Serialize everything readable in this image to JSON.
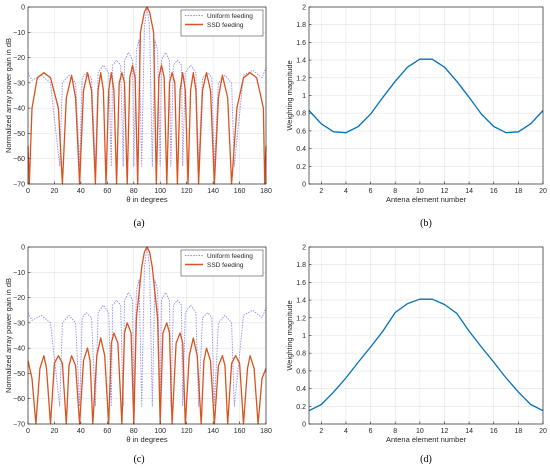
{
  "chart_data": [
    {
      "id": "a",
      "type": "line",
      "panel_label": "(a)",
      "title": "",
      "xlabel": "θ in degrees",
      "ylabel": "Normalized array power gain in dB",
      "xlim": [
        0,
        180
      ],
      "ylim": [
        -70,
        0
      ],
      "xticks": [
        0,
        20,
        40,
        60,
        80,
        100,
        120,
        140,
        160,
        180
      ],
      "yticks": [
        0,
        -10,
        -20,
        -30,
        -40,
        -50,
        -60,
        -70
      ],
      "grid": true,
      "legend_position": "top-right",
      "series": [
        {
          "name": "Uniform feeding",
          "color": "#8c8cf2",
          "style": "dotted",
          "x": [
            0,
            3,
            10,
            17,
            24,
            26,
            31,
            36,
            39,
            41,
            44,
            48,
            51,
            53,
            57,
            61,
            63,
            64,
            67,
            70,
            72,
            73,
            76,
            79,
            80,
            82,
            84,
            86,
            88,
            90,
            92,
            94,
            96,
            98,
            100,
            101,
            104,
            107,
            108,
            110,
            113,
            116,
            117,
            119,
            123,
            127,
            129,
            132,
            136,
            139,
            141,
            144,
            149,
            154,
            156,
            163,
            170,
            177,
            180
          ],
          "y": [
            -26,
            -29,
            -27,
            -30,
            -63,
            -30,
            -27,
            -30,
            -63,
            -28,
            -26,
            -28,
            -63,
            -26,
            -23,
            -26,
            -63,
            -23,
            -21,
            -23,
            -63,
            -21,
            -18,
            -21,
            -63,
            -17,
            -13,
            -63,
            -8,
            0,
            -8,
            -63,
            -13,
            -17,
            -63,
            -21,
            -18,
            -21,
            -63,
            -23,
            -21,
            -23,
            -63,
            -26,
            -23,
            -26,
            -63,
            -28,
            -26,
            -28,
            -63,
            -30,
            -27,
            -30,
            -63,
            -27,
            -25,
            -28,
            -24
          ]
        },
        {
          "name": "SSD feeding",
          "color": "#d9531e",
          "style": "solid",
          "x": [
            0,
            1,
            3,
            7,
            12,
            17,
            23,
            26,
            29,
            33,
            36,
            39,
            42,
            45,
            48,
            51,
            53,
            55,
            57,
            59,
            61,
            63,
            65,
            67,
            69,
            71,
            73,
            75,
            77,
            79,
            81,
            83,
            85,
            88,
            90,
            92,
            95,
            97,
            99,
            101,
            103,
            105,
            107,
            109,
            111,
            113,
            115,
            117,
            119,
            121,
            123,
            125,
            127,
            129,
            132,
            135,
            138,
            141,
            144,
            147,
            151,
            154,
            158,
            163,
            168,
            173,
            178,
            179,
            180
          ],
          "y": [
            -55,
            -70,
            -40,
            -28,
            -26,
            -28,
            -40,
            -70,
            -36,
            -27,
            -36,
            -70,
            -33,
            -26,
            -33,
            -70,
            -33,
            -26,
            -33,
            -70,
            -33,
            -26,
            -33,
            -70,
            -30,
            -26,
            -30,
            -70,
            -28,
            -23,
            -28,
            -70,
            -10,
            -2,
            0,
            -2,
            -10,
            -70,
            -28,
            -23,
            -28,
            -70,
            -30,
            -26,
            -30,
            -70,
            -33,
            -26,
            -33,
            -70,
            -33,
            -26,
            -33,
            -70,
            -33,
            -26,
            -33,
            -70,
            -36,
            -27,
            -36,
            -70,
            -40,
            -28,
            -26,
            -28,
            -40,
            -70,
            -55
          ]
        }
      ]
    },
    {
      "id": "b",
      "type": "line",
      "panel_label": "(b)",
      "title": "",
      "xlabel": "Antena element number",
      "ylabel": "Weighting magnitude",
      "xlim": [
        1,
        20
      ],
      "ylim": [
        0,
        2
      ],
      "xticks": [
        2,
        4,
        6,
        8,
        10,
        12,
        14,
        16,
        18,
        20
      ],
      "yticks": [
        0,
        0.2,
        0.4,
        0.6,
        0.8,
        1,
        1.2,
        1.4,
        1.6,
        1.8,
        2
      ],
      "grid": true,
      "series": [
        {
          "color": "#0072bd",
          "x": [
            1,
            2,
            3,
            4,
            5,
            6,
            7,
            8,
            9,
            10,
            11,
            12,
            13,
            14,
            15,
            16,
            17,
            18,
            19,
            20
          ],
          "y": [
            0.83,
            0.68,
            0.59,
            0.58,
            0.65,
            0.79,
            0.98,
            1.16,
            1.32,
            1.41,
            1.41,
            1.32,
            1.16,
            0.98,
            0.79,
            0.65,
            0.58,
            0.59,
            0.68,
            0.83
          ]
        }
      ]
    },
    {
      "id": "c",
      "type": "line",
      "panel_label": "(c)",
      "title": "",
      "xlabel": "θ in degrees",
      "ylabel": "Normalized array power gain in dB",
      "xlim": [
        0,
        180
      ],
      "ylim": [
        -70,
        0
      ],
      "xticks": [
        0,
        20,
        40,
        60,
        80,
        100,
        120,
        140,
        160,
        180
      ],
      "yticks": [
        0,
        -10,
        -20,
        -30,
        -40,
        -50,
        -60,
        -70
      ],
      "grid": true,
      "legend_position": "top-right",
      "series": [
        {
          "name": "Uniform feeding",
          "color": "#8c8cf2",
          "style": "dotted",
          "x": [
            0,
            3,
            10,
            17,
            24,
            26,
            31,
            36,
            39,
            41,
            44,
            48,
            51,
            53,
            57,
            61,
            63,
            64,
            67,
            70,
            72,
            73,
            76,
            79,
            80,
            82,
            84,
            86,
            88,
            90,
            92,
            94,
            96,
            98,
            100,
            101,
            104,
            107,
            108,
            110,
            113,
            116,
            117,
            119,
            123,
            127,
            129,
            132,
            136,
            139,
            141,
            144,
            149,
            154,
            156,
            163,
            170,
            177,
            180
          ],
          "y": [
            -26,
            -29,
            -27,
            -30,
            -63,
            -30,
            -27,
            -30,
            -63,
            -28,
            -26,
            -28,
            -63,
            -26,
            -23,
            -26,
            -63,
            -23,
            -21,
            -23,
            -63,
            -21,
            -18,
            -21,
            -63,
            -17,
            -13,
            -63,
            -8,
            0,
            -8,
            -63,
            -13,
            -17,
            -63,
            -21,
            -18,
            -21,
            -63,
            -23,
            -21,
            -23,
            -63,
            -26,
            -23,
            -26,
            -63,
            -28,
            -26,
            -28,
            -63,
            -30,
            -27,
            -30,
            -63,
            -27,
            -25,
            -28,
            -24
          ]
        },
        {
          "name": "SSD feeding",
          "color": "#d9531e",
          "style": "solid",
          "x": [
            0,
            3,
            6,
            9,
            12,
            14,
            17,
            20,
            23,
            26,
            29,
            31,
            33,
            36,
            39,
            42,
            45,
            47,
            49,
            52,
            55,
            58,
            61,
            63,
            65,
            68,
            71,
            73,
            75,
            78,
            80,
            82,
            84,
            86,
            88,
            90,
            92,
            94,
            96,
            98,
            100,
            102,
            105,
            107,
            109,
            112,
            115,
            117,
            119,
            122,
            125,
            128,
            131,
            133,
            135,
            138,
            141,
            144,
            147,
            149,
            151,
            154,
            157,
            160,
            163,
            166,
            168,
            171,
            174,
            177,
            180
          ],
          "y": [
            -45,
            -52,
            -70,
            -48,
            -43,
            -48,
            -70,
            -46,
            -43,
            -46,
            -70,
            -47,
            -43,
            -47,
            -70,
            -45,
            -40,
            -45,
            -70,
            -43,
            -36,
            -43,
            -70,
            -38,
            -34,
            -38,
            -70,
            -34,
            -30,
            -34,
            -70,
            -28,
            -18,
            -8,
            -2,
            0,
            -2,
            -8,
            -18,
            -28,
            -70,
            -34,
            -30,
            -34,
            -70,
            -38,
            -34,
            -38,
            -70,
            -43,
            -36,
            -43,
            -70,
            -45,
            -40,
            -45,
            -70,
            -47,
            -43,
            -47,
            -70,
            -46,
            -43,
            -46,
            -70,
            -48,
            -43,
            -48,
            -70,
            -52,
            -48
          ]
        }
      ]
    },
    {
      "id": "d",
      "type": "line",
      "panel_label": "(d)",
      "title": "",
      "xlabel": "Antena element number",
      "ylabel": "Weighting magnitude",
      "xlim": [
        1,
        20
      ],
      "ylim": [
        0,
        2
      ],
      "xticks": [
        2,
        4,
        6,
        8,
        10,
        12,
        14,
        16,
        18,
        20
      ],
      "yticks": [
        0,
        0.2,
        0.4,
        0.6,
        0.8,
        1,
        1.2,
        1.4,
        1.6,
        1.8,
        2
      ],
      "grid": true,
      "series": [
        {
          "color": "#0072bd",
          "x": [
            1,
            2,
            3,
            4,
            5,
            6,
            7,
            8,
            9,
            10,
            11,
            12,
            13,
            14,
            15,
            16,
            17,
            18,
            19,
            20
          ],
          "y": [
            0.15,
            0.22,
            0.36,
            0.52,
            0.7,
            0.87,
            1.05,
            1.26,
            1.36,
            1.41,
            1.41,
            1.35,
            1.25,
            1.05,
            0.87,
            0.7,
            0.52,
            0.36,
            0.22,
            0.15
          ]
        }
      ]
    }
  ]
}
